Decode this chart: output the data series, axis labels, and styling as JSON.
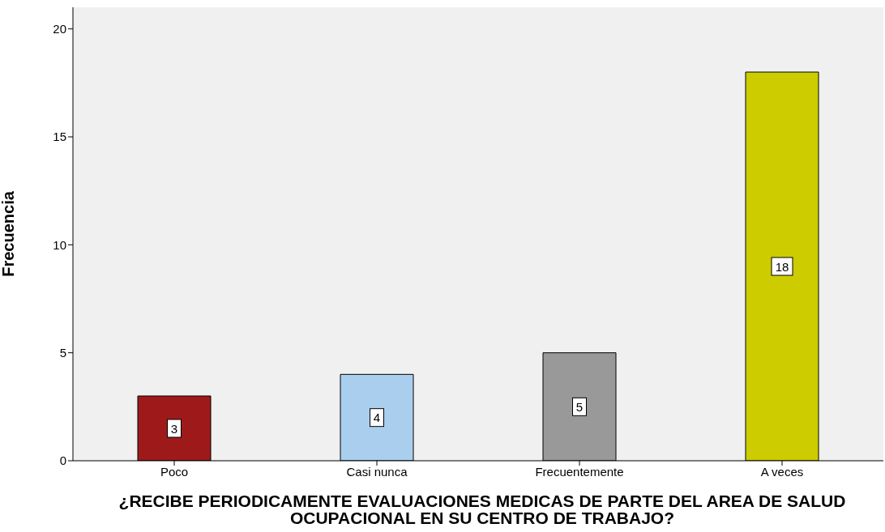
{
  "chart_data": {
    "type": "bar",
    "xlabel": "¿RECIBE PERIODICAMENTE EVALUACIONES MEDICAS DE PARTE DEL AREA DE SALUD OCUPACIONAL  EN SU CENTRO DE TRABAJO?",
    "ylabel": "Frecuencia",
    "categories": [
      "Poco",
      "Casi nunca",
      "Frecuentemente",
      "A veces"
    ],
    "values": [
      3,
      4,
      5,
      18
    ],
    "colors": [
      "#9e1a1a",
      "#aacfee",
      "#999999",
      "#cccc00"
    ],
    "ylim": [
      0,
      21
    ],
    "yticks": [
      0,
      5,
      10,
      15,
      20
    ],
    "grid": false,
    "data_labels": true
  }
}
